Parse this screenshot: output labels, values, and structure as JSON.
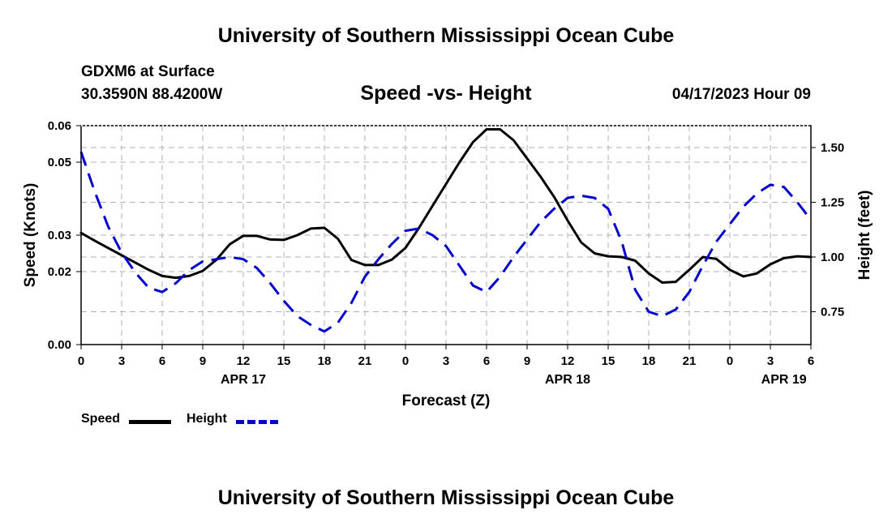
{
  "header": {
    "title": "University of Southern Mississippi Ocean Cube",
    "footer_title": "University of Southern Mississippi Ocean Cube",
    "station": "GDXM6 at Surface",
    "coordinates": "30.3590N  88.4200W",
    "datetime": "04/17/2023 Hour 09"
  },
  "colors": {
    "speed": "#000000",
    "height": "#0000cc",
    "grid": "#b0b0b0"
  },
  "chart_data": {
    "type": "line",
    "title": "Speed -vs- Height",
    "xlabel": "Forecast (Z)",
    "ylabel_left": "Speed (Knots)",
    "ylabel_right": "Height (feet)",
    "x_unit": "forecast hours from Apr 17 00Z",
    "xlim": [
      0,
      54
    ],
    "ylim_left": [
      0,
      0.06
    ],
    "ylim_right": [
      0.6,
      1.6
    ],
    "x_ticks": [
      0,
      3,
      6,
      9,
      12,
      15,
      18,
      21,
      24,
      27,
      30,
      33,
      36,
      39,
      42,
      45,
      48,
      51,
      54
    ],
    "x_tick_labels": [
      "0",
      "3",
      "6",
      "9",
      "12",
      "15",
      "18",
      "21",
      "0",
      "3",
      "6",
      "9",
      "12",
      "15",
      "18",
      "21",
      "0",
      "3",
      "6"
    ],
    "y_left_ticks": [
      0,
      0.02,
      0.03,
      0.05,
      0.06
    ],
    "y_left_tick_labels": [
      "0.00",
      "0.02",
      "0.03",
      "0.05",
      "0.06"
    ],
    "y_right_ticks": [
      0.75,
      1.0,
      1.25,
      1.5
    ],
    "y_right_tick_labels": [
      "0.75",
      "1.00",
      "1.25",
      "1.50"
    ],
    "day_labels": [
      {
        "x": 12,
        "label": "APR 17"
      },
      {
        "x": 36,
        "label": "APR 18"
      },
      {
        "x": 52,
        "label": "APR 19"
      }
    ],
    "series": [
      {
        "name": "Speed",
        "axis": "left",
        "style": "solid",
        "x": [
          0,
          1,
          2,
          3,
          4,
          5,
          6,
          7,
          8,
          9,
          10,
          11,
          12,
          13,
          14,
          15,
          16,
          17,
          18,
          19,
          20,
          21,
          22,
          23,
          24,
          25,
          26,
          27,
          28,
          29,
          30,
          31,
          32,
          33,
          34,
          35,
          36,
          37,
          38,
          39,
          40,
          41,
          42,
          43,
          44,
          45,
          46,
          47,
          48,
          49,
          50,
          51,
          52,
          53,
          54
        ],
        "y": [
          0.0306,
          0.0285,
          0.0265,
          0.0245,
          0.0225,
          0.0205,
          0.0188,
          0.0183,
          0.0188,
          0.0202,
          0.0232,
          0.0275,
          0.0298,
          0.0298,
          0.0288,
          0.0287,
          0.03,
          0.0318,
          0.032,
          0.029,
          0.0232,
          0.0218,
          0.0218,
          0.0233,
          0.0265,
          0.032,
          0.038,
          0.044,
          0.05,
          0.0555,
          0.059,
          0.059,
          0.056,
          0.051,
          0.046,
          0.0405,
          0.034,
          0.028,
          0.025,
          0.0242,
          0.024,
          0.023,
          0.0195,
          0.017,
          0.0172,
          0.0205,
          0.024,
          0.0235,
          0.0205,
          0.0187,
          0.0195,
          0.022,
          0.0237,
          0.0242,
          0.024
        ]
      },
      {
        "name": "Height",
        "axis": "right",
        "style": "dashed",
        "x": [
          0,
          1,
          2,
          3,
          4,
          5,
          6,
          7,
          8,
          9,
          10,
          11,
          12,
          13,
          14,
          15,
          16,
          17,
          18,
          19,
          20,
          21,
          22,
          23,
          24,
          25,
          26,
          27,
          28,
          29,
          30,
          31,
          32,
          33,
          34,
          35,
          36,
          37,
          38,
          39,
          40,
          41,
          42,
          43,
          44,
          45,
          46,
          47,
          48,
          49,
          50,
          51,
          52,
          53,
          54
        ],
        "y": [
          1.48,
          1.3,
          1.14,
          1.02,
          0.93,
          0.86,
          0.84,
          0.88,
          0.94,
          0.98,
          0.99,
          1.0,
          0.99,
          0.95,
          0.88,
          0.8,
          0.73,
          0.69,
          0.66,
          0.7,
          0.79,
          0.91,
          0.99,
          1.06,
          1.12,
          1.13,
          1.1,
          1.05,
          0.96,
          0.87,
          0.84,
          0.91,
          1.0,
          1.08,
          1.16,
          1.22,
          1.27,
          1.28,
          1.27,
          1.22,
          1.07,
          0.85,
          0.75,
          0.73,
          0.76,
          0.84,
          0.96,
          1.07,
          1.15,
          1.23,
          1.29,
          1.33,
          1.32,
          1.25,
          1.17
        ]
      }
    ],
    "legend": [
      {
        "label": "Speed",
        "series": "Speed"
      },
      {
        "label": "Height",
        "series": "Height"
      }
    ]
  }
}
